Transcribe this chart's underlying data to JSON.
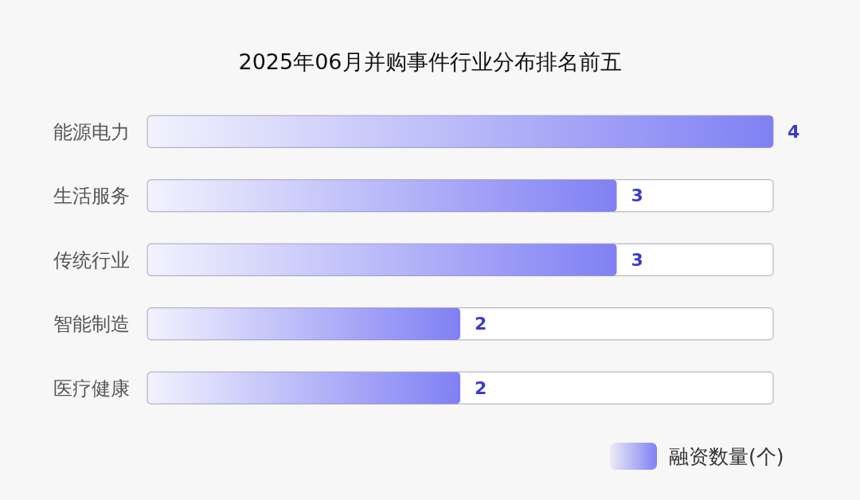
{
  "chart_data": {
    "type": "bar",
    "orientation": "horizontal",
    "title": "2025年06月并购事件行业分布排名前五",
    "categories": [
      "能源电力",
      "生活服务",
      "传统行业",
      "智能制造",
      "医疗健康"
    ],
    "series": [
      {
        "name": "融资数量(个)",
        "color": "#8080f4",
        "values": [
          4,
          3,
          3,
          2,
          2
        ]
      }
    ],
    "xlim": [
      0,
      4
    ],
    "tick_labels": "y",
    "data_labels": true,
    "legend": "bottom right"
  }
}
